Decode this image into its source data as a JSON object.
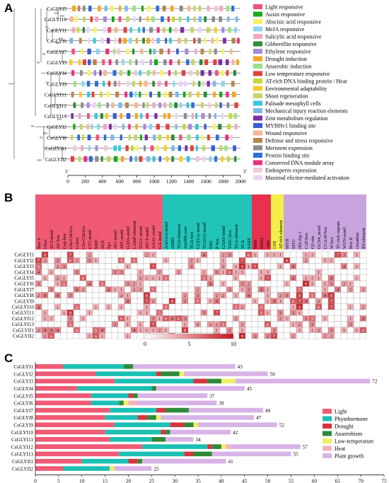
{
  "panel_a": {
    "label": "A",
    "genes": [
      "CsGLYI5",
      "CsGLYI10",
      "CsGLYI1",
      "CsGLYI6",
      "CsGLYI7",
      "CsGLYI3",
      "CsGLYI4",
      "CsGLYI9",
      "CsGLYI11",
      "CsGLYI12",
      "CsGLYI13",
      "CsGLYI2",
      "CsGLYI8",
      "CsGLYII1",
      "CsGLYII2"
    ],
    "bootstrap": [
      "100",
      "100",
      "97",
      "69",
      "100",
      "100",
      "99",
      "52",
      "67",
      "99",
      "100",
      "99",
      "100",
      "50",
      "65",
      "100"
    ],
    "axis_ticks": [
      "0",
      "200",
      "400",
      "600",
      "800",
      "1000",
      "1200",
      "1400",
      "1600",
      "1800",
      "2000"
    ],
    "axis_prime": "5'",
    "axis_end": "3'",
    "legend": [
      {
        "label": "Light responsive",
        "color": "#f0527a"
      },
      {
        "label": "Auxin responsive",
        "color": "#1aa61a"
      },
      {
        "label": "Abscisic acid responsive",
        "color": "#f5f36a"
      },
      {
        "label": "MeJA responsive",
        "color": "#8fd4f0"
      },
      {
        "label": "Salicylic acid responsive",
        "color": "#f2a7c4"
      },
      {
        "label": "Gibberellin responsive",
        "color": "#2e8b3a"
      },
      {
        "label": "Ethylene responsive",
        "color": "#a58ad6"
      },
      {
        "label": "Drought induction",
        "color": "#f5a623"
      },
      {
        "label": "Anaerobic induction",
        "color": "#9de08a"
      },
      {
        "label": "Low temperature responsive",
        "color": "#e0443a"
      },
      {
        "label": "AT-rich DNA binding protein / Heat",
        "color": "#c5d93c"
      },
      {
        "label": "Environmental adaptability",
        "color": "#f7cb2d"
      },
      {
        "label": "Shoot regeneration",
        "color": "#c7d36b"
      },
      {
        "label": "Palisade mesophyll cells",
        "color": "#38c6d9"
      },
      {
        "label": "Mechanical injury reaction elements",
        "color": "#7db9e8"
      },
      {
        "label": "Zein metabolism regulation",
        "color": "#7b2fa6"
      },
      {
        "label": "MYBHv1 binding site",
        "color": "#3a5bd1"
      },
      {
        "label": "Wound responsive",
        "color": "#f4b890"
      },
      {
        "label": "Defense and stress responsive",
        "color": "#b8874d"
      },
      {
        "label": "Meristem expression",
        "color": "#8c8c8c"
      },
      {
        "label": "Protein binding site",
        "color": "#2f6fd6"
      },
      {
        "label": "Conserved DNA module array",
        "color": "#e8317f"
      },
      {
        "label": "Endosperm expression",
        "color": "#f2c9d9"
      },
      {
        "label": "Maximal elicitor-mediated activation",
        "color": "#e9d4f5"
      }
    ]
  },
  "panel_b": {
    "label": "B",
    "genes": [
      "CsGLYI1",
      "CsGLYI2",
      "CsGLYI3",
      "CsGLYI4",
      "CsGLYI5",
      "CsGLYI6",
      "CsGLYI7",
      "CsGLYI8",
      "CsGLYI9",
      "CsGLYI10",
      "CsGLYI11",
      "CsGLYI12",
      "CsGLYI13",
      "CsGLYII1",
      "CsGLYII2"
    ],
    "groups": [
      {
        "color": "#f05a74",
        "elements": [
          "Box 4",
          "I-box",
          "TCT-motif",
          "AE-box",
          "Gap-box",
          "Chs-CMA1a",
          "G-box",
          "Chs-CMA2a",
          "GT1-motif",
          "MRE",
          "ACE",
          "Sp1",
          "AT1-motif",
          "ATC-motif",
          "GATA-motif",
          "LAMP-element",
          "TCCC-motif",
          "ATCT-motif",
          "AAAC-motif",
          "GA-motif"
        ]
      },
      {
        "color": "#20c4b8",
        "elements": [
          "AAGAA-motif",
          "ABRE",
          "TGA-element",
          "AuxRR-core",
          "TGA-box",
          "CGTCA-motif",
          "TGACG-motif",
          "ERE",
          "P-box",
          "GARE-motif",
          "TATC-box",
          "TCA-element",
          "TCA",
          "SARE"
        ]
      },
      {
        "color": "#e8314f",
        "elements": [
          "MBS",
          "MBSI",
          "ARE"
        ]
      },
      {
        "color": "#f2ef4a",
        "elements": [
          "LTR",
          "AT-rich element"
        ]
      },
      {
        "color": "#c9a3e0",
        "elements": [
          "MYB",
          "MYC",
          "HD-Zip 1",
          "CAT-box",
          "O2-site",
          "GCN4_motif",
          "CCAAT-box",
          "W box",
          "TC-rich repeats",
          "WUN-motif",
          "Box II",
          "circadian",
          "RY-element"
        ]
      }
    ],
    "colorbar": {
      "min": "0",
      "mid": "5",
      "max": "10"
    }
  },
  "panel_c": {
    "label": "C",
    "type": "bar",
    "categories": [
      "CsGLYI1",
      "CsGLYI2",
      "CsGLYI3",
      "CsGLYI4",
      "CsGLYI5",
      "CsGLYI6",
      "CsGLYI7",
      "CsGLYI8",
      "CsGLYI9",
      "CsGLYI10",
      "CsGLYI11",
      "CsGLYI12",
      "CsGLYI13",
      "CsGLYII1",
      "CsGLYII2"
    ],
    "totals": [
      "43",
      "50",
      "72",
      "45",
      "37",
      "39",
      "49",
      "47",
      "52",
      "42",
      "34",
      "57",
      "55",
      "41",
      "25"
    ],
    "x_ticks": [
      "0",
      "5",
      "10",
      "15",
      "20",
      "25",
      "30",
      "35",
      "40",
      "45",
      "50",
      "55",
      "60",
      "65",
      "70",
      "75"
    ],
    "legend": [
      {
        "label": "Light",
        "color": "#f05a74"
      },
      {
        "label": "Phytohormone",
        "color": "#1bbfb3"
      },
      {
        "label": "Drought",
        "color": "#d6353e"
      },
      {
        "label": "Anaerobism",
        "color": "#2e8a3a"
      },
      {
        "label": "Low-temperature",
        "color": "#f1ee66"
      },
      {
        "label": "Heat",
        "color": "#f4b3b9"
      },
      {
        "label": "Plant growth",
        "color": "#d8b3e6"
      }
    ]
  },
  "chart_data": {
    "type": "bar",
    "categories": [
      "CsGLYI1",
      "CsGLYI2",
      "CsGLYI3",
      "CsGLYI4",
      "CsGLYI5",
      "CsGLYI6",
      "CsGLYI7",
      "CsGLYI8",
      "CsGLYI9",
      "CsGLYI10",
      "CsGLYI11",
      "CsGLYI12",
      "CsGLYI13",
      "CsGLYII1",
      "CsGLYII2"
    ],
    "series": [
      {
        "name": "Light",
        "values": [
          6,
          13,
          17,
          9,
          12,
          12,
          16,
          15,
          17,
          15,
          16,
          23,
          18,
          10,
          6
        ]
      },
      {
        "name": "Phytohormone",
        "values": [
          13,
          13,
          17,
          16,
          8,
          6,
          10,
          7,
          12,
          12,
          9,
          14,
          14,
          10,
          10
        ]
      },
      {
        "name": "Drought",
        "values": [
          0,
          1,
          3,
          0,
          1,
          0,
          2,
          2,
          3,
          1,
          0,
          1,
          2,
          2,
          0
        ]
      },
      {
        "name": "Anaerobism",
        "values": [
          2,
          4,
          3,
          1,
          1,
          1,
          5,
          2,
          2,
          1,
          3,
          2,
          4,
          1,
          0
        ]
      },
      {
        "name": "Low-temperature",
        "values": [
          0,
          1,
          3,
          0,
          0,
          1,
          0,
          1,
          1,
          0,
          0,
          1,
          0,
          0,
          1
        ]
      },
      {
        "name": "Heat",
        "values": [
          0,
          0,
          0,
          0,
          0,
          2,
          0,
          0,
          0,
          0,
          0,
          1,
          0,
          0,
          0
        ]
      },
      {
        "name": "Plant growth",
        "values": [
          22,
          18,
          29,
          19,
          15,
          17,
          16,
          20,
          17,
          13,
          6,
          15,
          17,
          18,
          8
        ]
      }
    ],
    "xlim": [
      0,
      75
    ]
  }
}
